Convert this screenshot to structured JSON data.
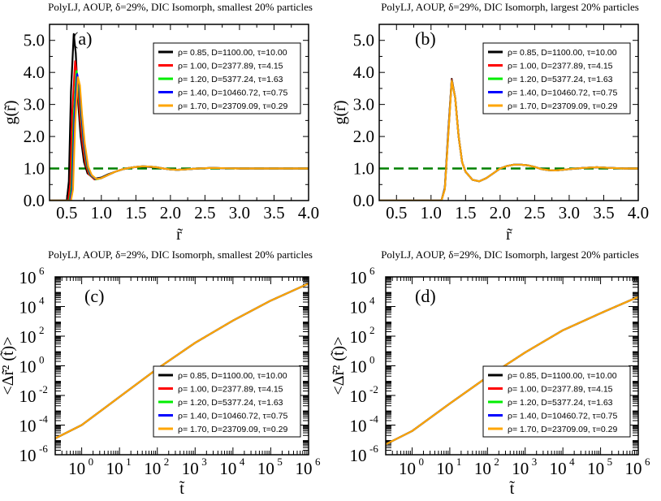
{
  "series_meta": [
    {
      "name": "ρ= 0.85, D=1100.00,   τ=10.00",
      "color": "#000000"
    },
    {
      "name": "ρ= 1.00, D=2377.89,   τ=4.15",
      "color": "#ff0000"
    },
    {
      "name": "ρ= 1.20, D=5377.24,   τ=1.63",
      "color": "#00ee00"
    },
    {
      "name": "ρ= 1.40, D=10460.72, τ=0.75",
      "color": "#0000ff"
    },
    {
      "name": "ρ= 1.70, D=23709.09, τ=0.29",
      "color": "#ffa500"
    }
  ],
  "chart_data": [
    {
      "id": "a",
      "type": "line",
      "title": "PolyLJ, AOUP,  δ=29%, DIC Isomorph, smallest 20% particles",
      "panel_label": "(a)",
      "xlabel": "r̃",
      "ylabel": "g(r̃)",
      "xlim": [
        0.25,
        4.0
      ],
      "ylim": [
        0.0,
        5.5
      ],
      "xticks": [
        "0.5",
        "1.0",
        "1.5",
        "2.0",
        "2.5",
        "3.0",
        "3.5",
        "4.0"
      ],
      "yticks": [
        "0.0",
        "1.0",
        "2.0",
        "3.0",
        "4.0",
        "5.0"
      ],
      "reference_line": {
        "y": 1.0,
        "color": "#008000",
        "style": "dashed"
      },
      "series": [
        {
          "name": "ρ= 0.85, D=1100.00,   τ=10.00",
          "x": [
            0.25,
            0.5,
            0.53,
            0.56,
            0.6,
            0.63,
            0.66,
            0.7,
            0.75,
            0.8,
            0.9,
            1.0,
            1.1,
            1.2,
            1.3,
            1.4,
            1.5,
            1.6,
            1.7,
            1.8,
            1.9,
            2.0,
            2.1,
            2.2,
            2.4,
            2.6,
            2.8,
            3.0,
            3.4,
            3.8,
            4.0
          ],
          "values": [
            0,
            0,
            0.6,
            3.4,
            5.2,
            4.6,
            3.2,
            2.0,
            1.2,
            0.85,
            0.68,
            0.72,
            0.82,
            0.9,
            0.97,
            1.02,
            1.05,
            1.06,
            1.05,
            1.03,
            1.0,
            0.97,
            0.96,
            0.97,
            1.0,
            1.02,
            1.01,
            1.0,
            1.0,
            1.0,
            1.0
          ]
        },
        {
          "name": "ρ= 1.00, D=2377.89,   τ=4.15",
          "x": [
            0.25,
            0.52,
            0.55,
            0.58,
            0.62,
            0.65,
            0.68,
            0.72,
            0.77,
            0.82,
            0.9,
            1.0,
            1.1,
            1.2,
            1.3,
            1.4,
            1.5,
            1.6,
            1.7,
            1.8,
            1.9,
            2.0,
            2.1,
            2.2,
            2.4,
            2.6,
            2.8,
            3.0,
            3.4,
            3.8,
            4.0
          ],
          "values": [
            0,
            0,
            0.5,
            2.8,
            4.35,
            3.9,
            2.9,
            1.9,
            1.15,
            0.82,
            0.66,
            0.7,
            0.8,
            0.9,
            0.97,
            1.02,
            1.05,
            1.07,
            1.06,
            1.04,
            1.0,
            0.97,
            0.96,
            0.97,
            1.0,
            1.02,
            1.01,
            1.0,
            1.0,
            1.0,
            1.0
          ]
        },
        {
          "name": "ρ= 1.20, D=5377.24,   τ=1.63",
          "x": [
            0.25,
            0.54,
            0.57,
            0.6,
            0.64,
            0.67,
            0.7,
            0.74,
            0.79,
            0.84,
            0.92,
            1.0,
            1.1,
            1.2,
            1.3,
            1.4,
            1.5,
            1.6,
            1.7,
            1.8,
            1.9,
            2.0,
            2.1,
            2.2,
            2.4,
            2.6,
            2.8,
            3.0,
            3.4,
            3.8,
            4.0
          ],
          "values": [
            0,
            0,
            0.45,
            2.6,
            4.05,
            3.7,
            2.8,
            1.85,
            1.1,
            0.8,
            0.66,
            0.7,
            0.8,
            0.9,
            0.97,
            1.02,
            1.05,
            1.07,
            1.06,
            1.04,
            1.0,
            0.97,
            0.96,
            0.97,
            1.0,
            1.02,
            1.01,
            1.0,
            1.0,
            1.0,
            1.0
          ]
        },
        {
          "name": "ρ= 1.40, D=10460.72, τ=0.75",
          "x": [
            0.25,
            0.55,
            0.58,
            0.61,
            0.65,
            0.68,
            0.71,
            0.75,
            0.8,
            0.85,
            0.92,
            1.0,
            1.1,
            1.2,
            1.3,
            1.4,
            1.5,
            1.6,
            1.7,
            1.8,
            1.9,
            2.0,
            2.1,
            2.2,
            2.4,
            2.6,
            2.8,
            3.0,
            3.4,
            3.8,
            4.0
          ],
          "values": [
            0,
            0,
            0.4,
            2.5,
            3.95,
            3.65,
            2.75,
            1.8,
            1.08,
            0.8,
            0.67,
            0.7,
            0.8,
            0.9,
            0.97,
            1.02,
            1.05,
            1.07,
            1.06,
            1.04,
            1.0,
            0.97,
            0.96,
            0.97,
            1.0,
            1.02,
            1.01,
            1.0,
            1.0,
            1.0,
            1.0
          ]
        },
        {
          "name": "ρ= 1.70, D=23709.09, τ=0.29",
          "x": [
            0.25,
            0.56,
            0.59,
            0.62,
            0.66,
            0.69,
            0.72,
            0.76,
            0.81,
            0.86,
            0.93,
            1.0,
            1.1,
            1.2,
            1.3,
            1.4,
            1.5,
            1.6,
            1.7,
            1.8,
            1.9,
            2.0,
            2.1,
            2.2,
            2.4,
            2.6,
            2.8,
            3.0,
            3.4,
            3.8,
            4.0
          ],
          "values": [
            0,
            0,
            0.35,
            2.4,
            3.85,
            3.6,
            2.7,
            1.78,
            1.06,
            0.8,
            0.67,
            0.7,
            0.8,
            0.9,
            0.97,
            1.02,
            1.05,
            1.07,
            1.06,
            1.04,
            1.0,
            0.97,
            0.96,
            0.97,
            1.0,
            1.02,
            1.01,
            1.0,
            1.0,
            1.0,
            1.0
          ]
        }
      ]
    },
    {
      "id": "b",
      "type": "line",
      "title": "PolyLJ, AOUP,  δ=29%, DIC Isomorph, largest 20% particles",
      "panel_label": "(b)",
      "xlabel": "r̃",
      "ylabel": "g(r̃)",
      "xlim": [
        0.25,
        4.0
      ],
      "ylim": [
        0.0,
        5.5
      ],
      "xticks": [
        "0.5",
        "1.0",
        "1.5",
        "2.0",
        "2.5",
        "3.0",
        "3.5",
        "4.0"
      ],
      "yticks": [
        "0.0",
        "1.0",
        "2.0",
        "3.0",
        "4.0",
        "5.0"
      ],
      "reference_line": {
        "y": 1.0,
        "color": "#008000",
        "style": "dashed"
      },
      "series": [
        {
          "name": "ρ= 0.85, D=1100.00,   τ=10.00",
          "x": [
            0.25,
            1.15,
            1.2,
            1.25,
            1.3,
            1.35,
            1.4,
            1.45,
            1.5,
            1.6,
            1.7,
            1.8,
            1.9,
            2.0,
            2.1,
            2.2,
            2.3,
            2.4,
            2.5,
            2.6,
            2.7,
            2.8,
            2.9,
            3.0,
            3.2,
            3.4,
            3.6,
            3.8,
            4.0
          ],
          "values": [
            0,
            0,
            0.4,
            2.2,
            3.8,
            3.2,
            2.0,
            1.2,
            0.9,
            0.65,
            0.6,
            0.7,
            0.85,
            1.0,
            1.08,
            1.12,
            1.12,
            1.1,
            1.05,
            0.98,
            0.95,
            0.94,
            0.96,
            0.98,
            1.02,
            1.04,
            1.02,
            1.0,
            1.0
          ]
        },
        {
          "name": "ρ= 1.00, D=2377.89,   τ=4.15",
          "x": [
            0.25,
            1.15,
            1.2,
            1.25,
            1.3,
            1.35,
            1.4,
            1.45,
            1.5,
            1.6,
            1.7,
            1.8,
            1.9,
            2.0,
            2.1,
            2.2,
            2.3,
            2.4,
            2.5,
            2.6,
            2.7,
            2.8,
            2.9,
            3.0,
            3.2,
            3.4,
            3.6,
            3.8,
            4.0
          ],
          "values": [
            0,
            0,
            0.38,
            2.15,
            3.78,
            3.2,
            2.0,
            1.2,
            0.9,
            0.65,
            0.6,
            0.7,
            0.85,
            1.0,
            1.08,
            1.12,
            1.12,
            1.1,
            1.05,
            0.98,
            0.95,
            0.94,
            0.96,
            0.98,
            1.02,
            1.04,
            1.02,
            1.0,
            1.0
          ]
        },
        {
          "name": "ρ= 1.20, D=5377.24,   τ=1.63",
          "x": [
            0.25,
            1.15,
            1.2,
            1.25,
            1.3,
            1.35,
            1.4,
            1.45,
            1.5,
            1.6,
            1.7,
            1.8,
            1.9,
            2.0,
            2.1,
            2.2,
            2.3,
            2.4,
            2.5,
            2.6,
            2.7,
            2.8,
            2.9,
            3.0,
            3.2,
            3.4,
            3.6,
            3.8,
            4.0
          ],
          "values": [
            0,
            0,
            0.37,
            2.1,
            3.76,
            3.2,
            2.0,
            1.2,
            0.9,
            0.65,
            0.6,
            0.7,
            0.85,
            1.0,
            1.08,
            1.12,
            1.12,
            1.1,
            1.05,
            0.98,
            0.95,
            0.94,
            0.96,
            0.98,
            1.02,
            1.04,
            1.02,
            1.0,
            1.0
          ]
        },
        {
          "name": "ρ= 1.40, D=10460.72, τ=0.75",
          "x": [
            0.25,
            1.15,
            1.2,
            1.25,
            1.3,
            1.35,
            1.4,
            1.45,
            1.5,
            1.6,
            1.7,
            1.8,
            1.9,
            2.0,
            2.1,
            2.2,
            2.3,
            2.4,
            2.5,
            2.6,
            2.7,
            2.8,
            2.9,
            3.0,
            3.2,
            3.4,
            3.6,
            3.8,
            4.0
          ],
          "values": [
            0,
            0,
            0.36,
            2.08,
            3.75,
            3.2,
            2.0,
            1.2,
            0.9,
            0.65,
            0.6,
            0.7,
            0.85,
            1.0,
            1.08,
            1.12,
            1.12,
            1.1,
            1.05,
            0.98,
            0.95,
            0.94,
            0.96,
            0.98,
            1.02,
            1.04,
            1.02,
            1.0,
            1.0
          ]
        },
        {
          "name": "ρ= 1.70, D=23709.09, τ=0.29",
          "x": [
            0.25,
            1.15,
            1.2,
            1.25,
            1.3,
            1.35,
            1.4,
            1.45,
            1.5,
            1.6,
            1.7,
            1.8,
            1.9,
            2.0,
            2.1,
            2.2,
            2.3,
            2.4,
            2.5,
            2.6,
            2.7,
            2.8,
            2.9,
            3.0,
            3.2,
            3.4,
            3.6,
            3.8,
            4.0
          ],
          "values": [
            0,
            0,
            0.35,
            2.05,
            3.74,
            3.2,
            2.0,
            1.2,
            0.9,
            0.65,
            0.6,
            0.7,
            0.85,
            1.0,
            1.08,
            1.12,
            1.12,
            1.1,
            1.05,
            0.98,
            0.95,
            0.94,
            0.96,
            0.98,
            1.02,
            1.04,
            1.02,
            1.0,
            1.0
          ]
        }
      ]
    },
    {
      "id": "c",
      "type": "line",
      "scale": "log-log",
      "title": "PolyLJ, AOUP,  δ=29%, DIC Isomorph, smallest 20% particles",
      "panel_label": "(c)",
      "xlabel": "t̃",
      "ylabel": "<Δr̃² (t̃)>",
      "xlim_log10": [
        -0.7,
        6.0
      ],
      "ylim_log10": [
        -6.0,
        6.0
      ],
      "xtick_exponents": [
        "0",
        "1",
        "2",
        "3",
        "4",
        "5",
        "6"
      ],
      "ytick_exponents": [
        "-6",
        "-4",
        "-2",
        "0",
        "2",
        "4",
        "6"
      ],
      "series": [
        {
          "name": "ρ= 0.85, D=1100.00,   τ=10.00",
          "log10_x": [
            -0.7,
            0,
            1,
            2,
            3,
            4,
            5,
            6
          ],
          "log10_y": [
            -4.9,
            -4.0,
            -2.1,
            -0.2,
            1.55,
            3.05,
            4.4,
            5.55
          ]
        },
        {
          "name": "ρ= 1.00, D=2377.89,   τ=4.15",
          "log10_x": [
            -0.7,
            0,
            1,
            2,
            3,
            4,
            5,
            6
          ],
          "log10_y": [
            -4.9,
            -4.0,
            -2.1,
            -0.2,
            1.55,
            3.05,
            4.4,
            5.55
          ]
        },
        {
          "name": "ρ= 1.20, D=5377.24,   τ=1.63",
          "log10_x": [
            -0.7,
            0,
            1,
            2,
            3,
            4,
            5,
            6
          ],
          "log10_y": [
            -4.9,
            -4.0,
            -2.1,
            -0.2,
            1.55,
            3.05,
            4.4,
            5.55
          ]
        },
        {
          "name": "ρ= 1.40, D=10460.72, τ=0.75",
          "log10_x": [
            -0.7,
            0,
            1,
            2,
            3,
            4,
            5,
            6
          ],
          "log10_y": [
            -4.9,
            -4.0,
            -2.1,
            -0.2,
            1.55,
            3.05,
            4.4,
            5.55
          ]
        },
        {
          "name": "ρ= 1.70, D=23709.09, τ=0.29",
          "log10_x": [
            -0.7,
            0,
            1,
            2,
            3,
            4,
            5,
            6
          ],
          "log10_y": [
            -4.9,
            -4.0,
            -2.1,
            -0.2,
            1.55,
            3.05,
            4.4,
            5.55
          ]
        }
      ]
    },
    {
      "id": "d",
      "type": "line",
      "scale": "log-log",
      "title": "PolyLJ, AOUP,  δ=29%, DIC Isomorph, largest 20% particles",
      "panel_label": "(d)",
      "xlabel": "t̃",
      "ylabel": "<Δr̃² (t̃)>",
      "xlim_log10": [
        -0.7,
        6.0
      ],
      "ylim_log10": [
        -6.0,
        6.0
      ],
      "xtick_exponents": [
        "0",
        "1",
        "2",
        "3",
        "4",
        "5",
        "6"
      ],
      "ytick_exponents": [
        "-6",
        "-4",
        "-2",
        "0",
        "2",
        "4",
        "6"
      ],
      "series": [
        {
          "name": "ρ= 0.85, D=1100.00,   τ=10.00",
          "log10_x": [
            -0.7,
            0,
            1,
            2,
            3,
            4,
            5,
            6
          ],
          "log10_y": [
            -5.3,
            -4.4,
            -2.55,
            -0.75,
            0.9,
            2.4,
            3.55,
            4.65
          ]
        },
        {
          "name": "ρ= 1.00, D=2377.89,   τ=4.15",
          "log10_x": [
            -0.7,
            0,
            1,
            2,
            3,
            4,
            5,
            6
          ],
          "log10_y": [
            -5.3,
            -4.4,
            -2.55,
            -0.75,
            0.9,
            2.4,
            3.55,
            4.65
          ]
        },
        {
          "name": "ρ= 1.20, D=5377.24,   τ=1.63",
          "log10_x": [
            -0.7,
            0,
            1,
            2,
            3,
            4,
            5,
            6
          ],
          "log10_y": [
            -5.3,
            -4.4,
            -2.55,
            -0.75,
            0.9,
            2.4,
            3.55,
            4.65
          ]
        },
        {
          "name": "ρ= 1.40, D=10460.72, τ=0.75",
          "log10_x": [
            -0.7,
            0,
            1,
            2,
            3,
            4,
            5,
            6
          ],
          "log10_y": [
            -5.3,
            -4.4,
            -2.55,
            -0.75,
            0.9,
            2.4,
            3.55,
            4.65
          ]
        },
        {
          "name": "ρ= 1.70, D=23709.09, τ=0.29",
          "log10_x": [
            -0.7,
            0,
            1,
            2,
            3,
            4,
            5,
            6
          ],
          "log10_y": [
            -5.3,
            -4.4,
            -2.55,
            -0.75,
            0.9,
            2.4,
            3.55,
            4.65
          ]
        }
      ]
    }
  ]
}
